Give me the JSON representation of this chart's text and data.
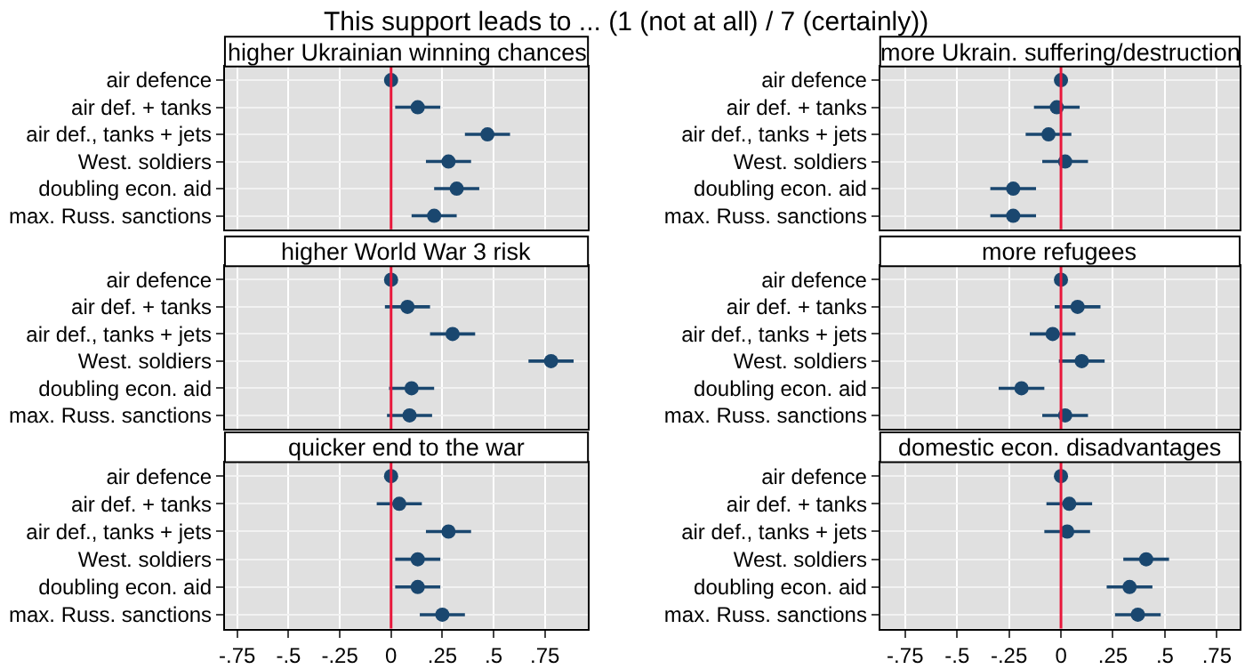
{
  "chart_data": [
    {
      "type": "scatter",
      "orientation": "horizontal",
      "title": "higher Ukrainian winning chances",
      "annotations": [
        "This support leads to ... (1 (not at all) / 7 (certainly))"
      ],
      "categories": [
        "air defence",
        "air def. + tanks",
        "air def., tanks + jets",
        "West. soldiers",
        "doubling econ. aid",
        "max. Russ. sanctions"
      ],
      "values": [
        0,
        0.13,
        0.47,
        0.28,
        0.32,
        0.21
      ],
      "errors": [
        null,
        0.11,
        0.11,
        0.11,
        0.11,
        0.11
      ],
      "color": "#1a476f",
      "marker": "circle",
      "xlim": [
        -0.81,
        0.96
      ],
      "xticks": [
        {
          "value": -0.75,
          "label": null
        },
        {
          "value": -0.5,
          "label": null
        },
        {
          "value": -0.25,
          "label": null
        },
        {
          "value": 0,
          "label": null
        },
        {
          "value": 0.25,
          "label": null
        },
        {
          "value": 0.5,
          "label": null
        },
        {
          "value": 0.75,
          "label": null
        }
      ],
      "ref_lines": [
        {
          "axis": "x",
          "value": 0,
          "color": "#e8173b"
        }
      ],
      "grid": true,
      "legend": false,
      "tick_labels": "y"
    },
    {
      "type": "scatter",
      "orientation": "horizontal",
      "title": "more Ukrain. suffering/destruction",
      "categories": [
        "air defence",
        "air def. + tanks",
        "air def., tanks + jets",
        "West. soldiers",
        "doubling econ. aid",
        "max. Russ. sanctions"
      ],
      "values": [
        0,
        -0.02,
        -0.06,
        0.02,
        -0.23,
        -0.23
      ],
      "errors": [
        null,
        0.11,
        0.11,
        0.11,
        0.11,
        0.11
      ],
      "color": "#1a476f",
      "marker": "circle",
      "xlim": [
        -0.87,
        0.86
      ],
      "xticks": [
        {
          "value": -0.75,
          "label": null
        },
        {
          "value": -0.5,
          "label": null
        },
        {
          "value": -0.25,
          "label": null
        },
        {
          "value": 0,
          "label": null
        },
        {
          "value": 0.25,
          "label": null
        },
        {
          "value": 0.5,
          "label": null
        },
        {
          "value": 0.75,
          "label": null
        }
      ],
      "ref_lines": [
        {
          "axis": "x",
          "value": 0,
          "color": "#e8173b"
        }
      ],
      "grid": true,
      "legend": false,
      "tick_labels": "y"
    },
    {
      "type": "scatter",
      "orientation": "horizontal",
      "title": "higher World War 3 risk",
      "categories": [
        "air defence",
        "air def. + tanks",
        "air def., tanks + jets",
        "West. soldiers",
        "doubling econ. aid",
        "max. Russ. sanctions"
      ],
      "values": [
        0,
        0.08,
        0.3,
        0.78,
        0.1,
        0.09
      ],
      "errors": [
        null,
        0.11,
        0.11,
        0.11,
        0.11,
        0.11
      ],
      "color": "#1a476f",
      "marker": "circle",
      "xlim": [
        -0.81,
        0.96
      ],
      "xticks": [
        {
          "value": -0.75,
          "label": null
        },
        {
          "value": -0.5,
          "label": null
        },
        {
          "value": -0.25,
          "label": null
        },
        {
          "value": 0,
          "label": null
        },
        {
          "value": 0.25,
          "label": null
        },
        {
          "value": 0.5,
          "label": null
        },
        {
          "value": 0.75,
          "label": null
        }
      ],
      "ref_lines": [
        {
          "axis": "x",
          "value": 0,
          "color": "#e8173b"
        }
      ],
      "grid": true,
      "legend": false,
      "tick_labels": "y"
    },
    {
      "type": "scatter",
      "orientation": "horizontal",
      "title": "more refugees",
      "categories": [
        "air defence",
        "air def. + tanks",
        "air def., tanks + jets",
        "West. soldiers",
        "doubling econ. aid",
        "max. Russ. sanctions"
      ],
      "values": [
        0,
        0.08,
        -0.04,
        0.1,
        -0.19,
        0.02
      ],
      "errors": [
        null,
        0.11,
        0.11,
        0.11,
        0.11,
        0.11
      ],
      "color": "#1a476f",
      "marker": "circle",
      "xlim": [
        -0.87,
        0.86
      ],
      "xticks": [
        {
          "value": -0.75,
          "label": null
        },
        {
          "value": -0.5,
          "label": null
        },
        {
          "value": -0.25,
          "label": null
        },
        {
          "value": 0,
          "label": null
        },
        {
          "value": 0.25,
          "label": null
        },
        {
          "value": 0.5,
          "label": null
        },
        {
          "value": 0.75,
          "label": null
        }
      ],
      "ref_lines": [
        {
          "axis": "x",
          "value": 0,
          "color": "#e8173b"
        }
      ],
      "grid": true,
      "legend": false,
      "tick_labels": "y"
    },
    {
      "type": "scatter",
      "orientation": "horizontal",
      "title": "quicker end to the war",
      "categories": [
        "air defence",
        "air def. + tanks",
        "air def., tanks + jets",
        "West. soldiers",
        "doubling econ. aid",
        "max. Russ. sanctions"
      ],
      "values": [
        0,
        0.04,
        0.28,
        0.13,
        0.13,
        0.25
      ],
      "errors": [
        null,
        0.11,
        0.11,
        0.11,
        0.11,
        0.11
      ],
      "color": "#1a476f",
      "marker": "circle",
      "xlim": [
        -0.81,
        0.96
      ],
      "xticks": [
        {
          "value": -0.75,
          "label": "-.75"
        },
        {
          "value": -0.5,
          "label": "-.5"
        },
        {
          "value": -0.25,
          "label": "-.25"
        },
        0,
        {
          "value": 0.25,
          "label": ".25"
        },
        {
          "value": 0.5,
          "label": ".5"
        },
        {
          "value": 0.75,
          "label": ".75"
        }
      ],
      "ref_lines": [
        {
          "axis": "x",
          "value": 0,
          "color": "#e8173b"
        }
      ],
      "grid": true,
      "legend": false
    },
    {
      "type": "scatter",
      "orientation": "horizontal",
      "title": "domestic econ. disadvantages",
      "categories": [
        "air defence",
        "air def. + tanks",
        "air def., tanks + jets",
        "West. soldiers",
        "doubling econ. aid",
        "max. Russ. sanctions"
      ],
      "values": [
        0,
        0.04,
        0.03,
        0.41,
        0.33,
        0.37
      ],
      "errors": [
        null,
        0.11,
        0.11,
        0.11,
        0.11,
        0.11
      ],
      "color": "#1a476f",
      "marker": "circle",
      "xlim": [
        -0.87,
        0.86
      ],
      "xticks": [
        {
          "value": -0.75,
          "label": "-.75"
        },
        {
          "value": -0.5,
          "label": "-.5"
        },
        {
          "value": -0.25,
          "label": "-.25"
        },
        0,
        {
          "value": 0.25,
          "label": ".25"
        },
        {
          "value": 0.5,
          "label": ".5"
        },
        {
          "value": 0.75,
          "label": ".75"
        }
      ],
      "ref_lines": [
        {
          "axis": "x",
          "value": 0,
          "color": "#e8173b"
        }
      ],
      "grid": true,
      "legend": false
    }
  ]
}
